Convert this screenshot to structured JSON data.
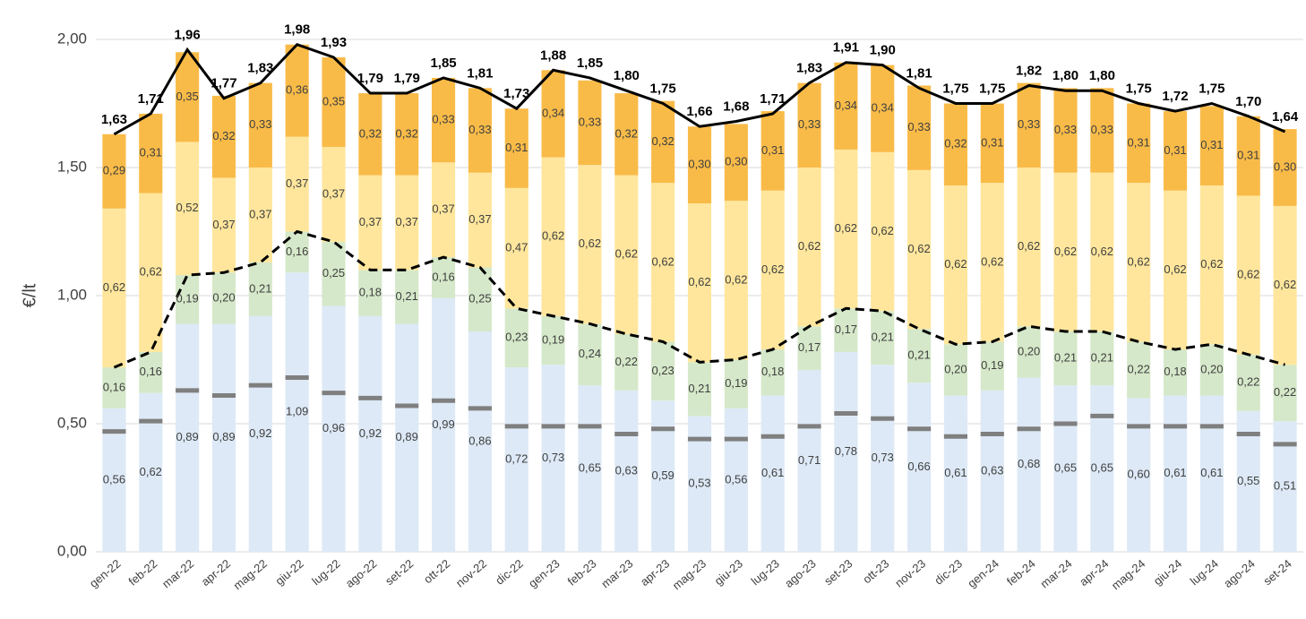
{
  "chart_data": {
    "type": "bar",
    "y_label": "€/lt",
    "categories": [
      "gen-22",
      "feb-22",
      "mar-22",
      "apr-22",
      "mag-22",
      "giu-22",
      "lug-22",
      "ago-22",
      "set-22",
      "ott-22",
      "nov-22",
      "dic-22",
      "gen-23",
      "feb-23",
      "mar-23",
      "apr-23",
      "mag-23",
      "giu-23",
      "lug-23",
      "ago-23",
      "set-23",
      "ott-23",
      "nov-23",
      "dic-23",
      "gen-24",
      "feb-24",
      "mar-24",
      "apr-24",
      "mag-24",
      "giu-24",
      "lug-24",
      "ago-24",
      "set-24"
    ],
    "ylim": [
      0,
      2.1
    ],
    "yticks": [
      {
        "value": 0,
        "label": "0,00"
      },
      {
        "value": 0.5,
        "label": "0,50"
      },
      {
        "value": 1,
        "label": "1,00"
      },
      {
        "value": 1.5,
        "label": "1,50"
      },
      {
        "value": 2,
        "label": "2,00"
      }
    ],
    "grid": true,
    "series": [
      {
        "style": "bar",
        "color": "#dde9f6",
        "values": [
          0.56,
          0.62,
          0.89,
          0.89,
          0.92,
          1.09,
          0.96,
          0.92,
          0.89,
          0.99,
          0.86,
          0.72,
          0.73,
          0.65,
          0.63,
          0.59,
          0.53,
          0.56,
          0.61,
          0.71,
          0.78,
          0.73,
          0.66,
          0.61,
          0.63,
          0.68,
          0.65,
          0.65,
          0.6,
          0.61,
          0.61,
          0.55,
          0.51
        ],
        "value_labels": [
          "0,56",
          "0,62",
          "0,89",
          "0,89",
          "0,92",
          "1,09",
          "0,96",
          "0,92",
          "0,89",
          "0,99",
          "0,86",
          "0,72",
          "0,73",
          "0,65",
          "0,63",
          "0,59",
          "0,53",
          "0,56",
          "0,61",
          "0,71",
          "0,78",
          "0,73",
          "0,66",
          "0,61",
          "0,63",
          "0,68",
          "0,65",
          "0,65",
          "0,60",
          "0,61",
          "0,61",
          "0,55",
          "0,51"
        ]
      },
      {
        "style": "bar",
        "color": "#d5e8c9",
        "values": [
          0.16,
          0.16,
          0.19,
          0.2,
          0.21,
          0.16,
          0.25,
          0.18,
          0.21,
          0.16,
          0.25,
          0.23,
          0.19,
          0.24,
          0.22,
          0.23,
          0.21,
          0.19,
          0.18,
          0.17,
          0.17,
          0.21,
          0.21,
          0.2,
          0.19,
          0.2,
          0.21,
          0.21,
          0.22,
          0.18,
          0.2,
          0.22,
          0.22
        ],
        "value_labels": [
          "0,16",
          "0,16",
          "0,19",
          "0,20",
          "0,21",
          "0,16",
          "0,25",
          "0,18",
          "0,21",
          "0,16",
          "0,25",
          "0,23",
          "0,19",
          "0,24",
          "0,22",
          "0,23",
          "0,21",
          "0,19",
          "0,18",
          "0,17",
          "0,17",
          "0,21",
          "0,21",
          "0,20",
          "0,19",
          "0,20",
          "0,21",
          "0,21",
          "0,22",
          "0,18",
          "0,20",
          "0,22",
          "0,22"
        ]
      },
      {
        "style": "bar",
        "color": "#ffe69c",
        "values": [
          0.62,
          0.62,
          0.52,
          0.37,
          0.37,
          0.37,
          0.37,
          0.37,
          0.37,
          0.37,
          0.37,
          0.47,
          0.62,
          0.62,
          0.62,
          0.62,
          0.62,
          0.62,
          0.62,
          0.62,
          0.62,
          0.62,
          0.62,
          0.62,
          0.62,
          0.62,
          0.62,
          0.62,
          0.62,
          0.62,
          0.62,
          0.62,
          0.62
        ],
        "value_labels": [
          "0,62",
          "0,62",
          "0,52",
          "0,37",
          "0,37",
          "0,37",
          "0,37",
          "0,37",
          "0,37",
          "0,37",
          "0,37",
          "0,47",
          "0,62",
          "0,62",
          "0,62",
          "0,62",
          "0,62",
          "0,62",
          "0,62",
          "0,62",
          "0,62",
          "0,62",
          "0,62",
          "0,62",
          "0,62",
          "0,62",
          "0,62",
          "0,62",
          "0,62",
          "0,62",
          "0,62",
          "0,62",
          "0,62"
        ]
      },
      {
        "style": "bar",
        "color": "#f9bb48",
        "values": [
          0.29,
          0.31,
          0.35,
          0.32,
          0.33,
          0.36,
          0.35,
          0.32,
          0.32,
          0.33,
          0.33,
          0.31,
          0.34,
          0.33,
          0.32,
          0.32,
          0.3,
          0.3,
          0.31,
          0.33,
          0.34,
          0.34,
          0.33,
          0.32,
          0.31,
          0.33,
          0.33,
          0.33,
          0.31,
          0.31,
          0.31,
          0.31,
          0.3
        ],
        "value_labels": [
          "0,29",
          "0,31",
          "0,35",
          "0,32",
          "0,33",
          "0,36",
          "0,35",
          "0,32",
          "0,32",
          "0,33",
          "0,33",
          "0,31",
          "0,34",
          "0,33",
          "0,32",
          "0,32",
          "0,30",
          "0,30",
          "0,31",
          "0,33",
          "0,34",
          "0,34",
          "0,33",
          "0,32",
          "0,31",
          "0,33",
          "0,33",
          "0,33",
          "0,31",
          "0,31",
          "0,31",
          "0,31",
          "0,30"
        ]
      },
      {
        "style": "line",
        "color": "#000000",
        "values": [
          1.63,
          1.71,
          1.96,
          1.77,
          1.83,
          1.98,
          1.93,
          1.79,
          1.79,
          1.85,
          1.81,
          1.73,
          1.88,
          1.85,
          1.8,
          1.75,
          1.66,
          1.68,
          1.71,
          1.83,
          1.91,
          1.9,
          1.81,
          1.75,
          1.75,
          1.82,
          1.8,
          1.8,
          1.75,
          1.72,
          1.75,
          1.7,
          1.64
        ],
        "value_labels": [
          "1,63",
          "1,71",
          "1,96",
          "1,77",
          "1,83",
          "1,98",
          "1,93",
          "1,79",
          "1,79",
          "1,85",
          "1,81",
          "1,73",
          "1,88",
          "1,85",
          "1,80",
          "1,75",
          "1,66",
          "1,68",
          "1,71",
          "1,83",
          "1,91",
          "1,90",
          "1,81",
          "1,75",
          "1,75",
          "1,82",
          "1,80",
          "1,80",
          "1,75",
          "1,72",
          "1,75",
          "1,70",
          "1,64"
        ]
      },
      {
        "style": "dashed",
        "color": "#000000",
        "values": [
          0.72,
          0.78,
          1.08,
          1.09,
          1.13,
          1.25,
          1.21,
          1.1,
          1.1,
          1.15,
          1.11,
          0.95,
          0.92,
          0.89,
          0.85,
          0.82,
          0.74,
          0.75,
          0.79,
          0.88,
          0.95,
          0.94,
          0.87,
          0.81,
          0.82,
          0.88,
          0.86,
          0.86,
          0.82,
          0.79,
          0.81,
          0.77,
          0.73
        ]
      },
      {
        "style": "marker",
        "color": "#7f7f7f",
        "values": [
          0.47,
          0.51,
          0.63,
          0.61,
          0.65,
          0.68,
          0.62,
          0.6,
          0.57,
          0.59,
          0.56,
          0.49,
          0.49,
          0.49,
          0.46,
          0.48,
          0.44,
          0.44,
          0.45,
          0.49,
          0.54,
          0.52,
          0.48,
          0.45,
          0.46,
          0.48,
          0.5,
          0.53,
          0.49,
          0.49,
          0.49,
          0.46,
          0.42
        ]
      }
    ]
  }
}
